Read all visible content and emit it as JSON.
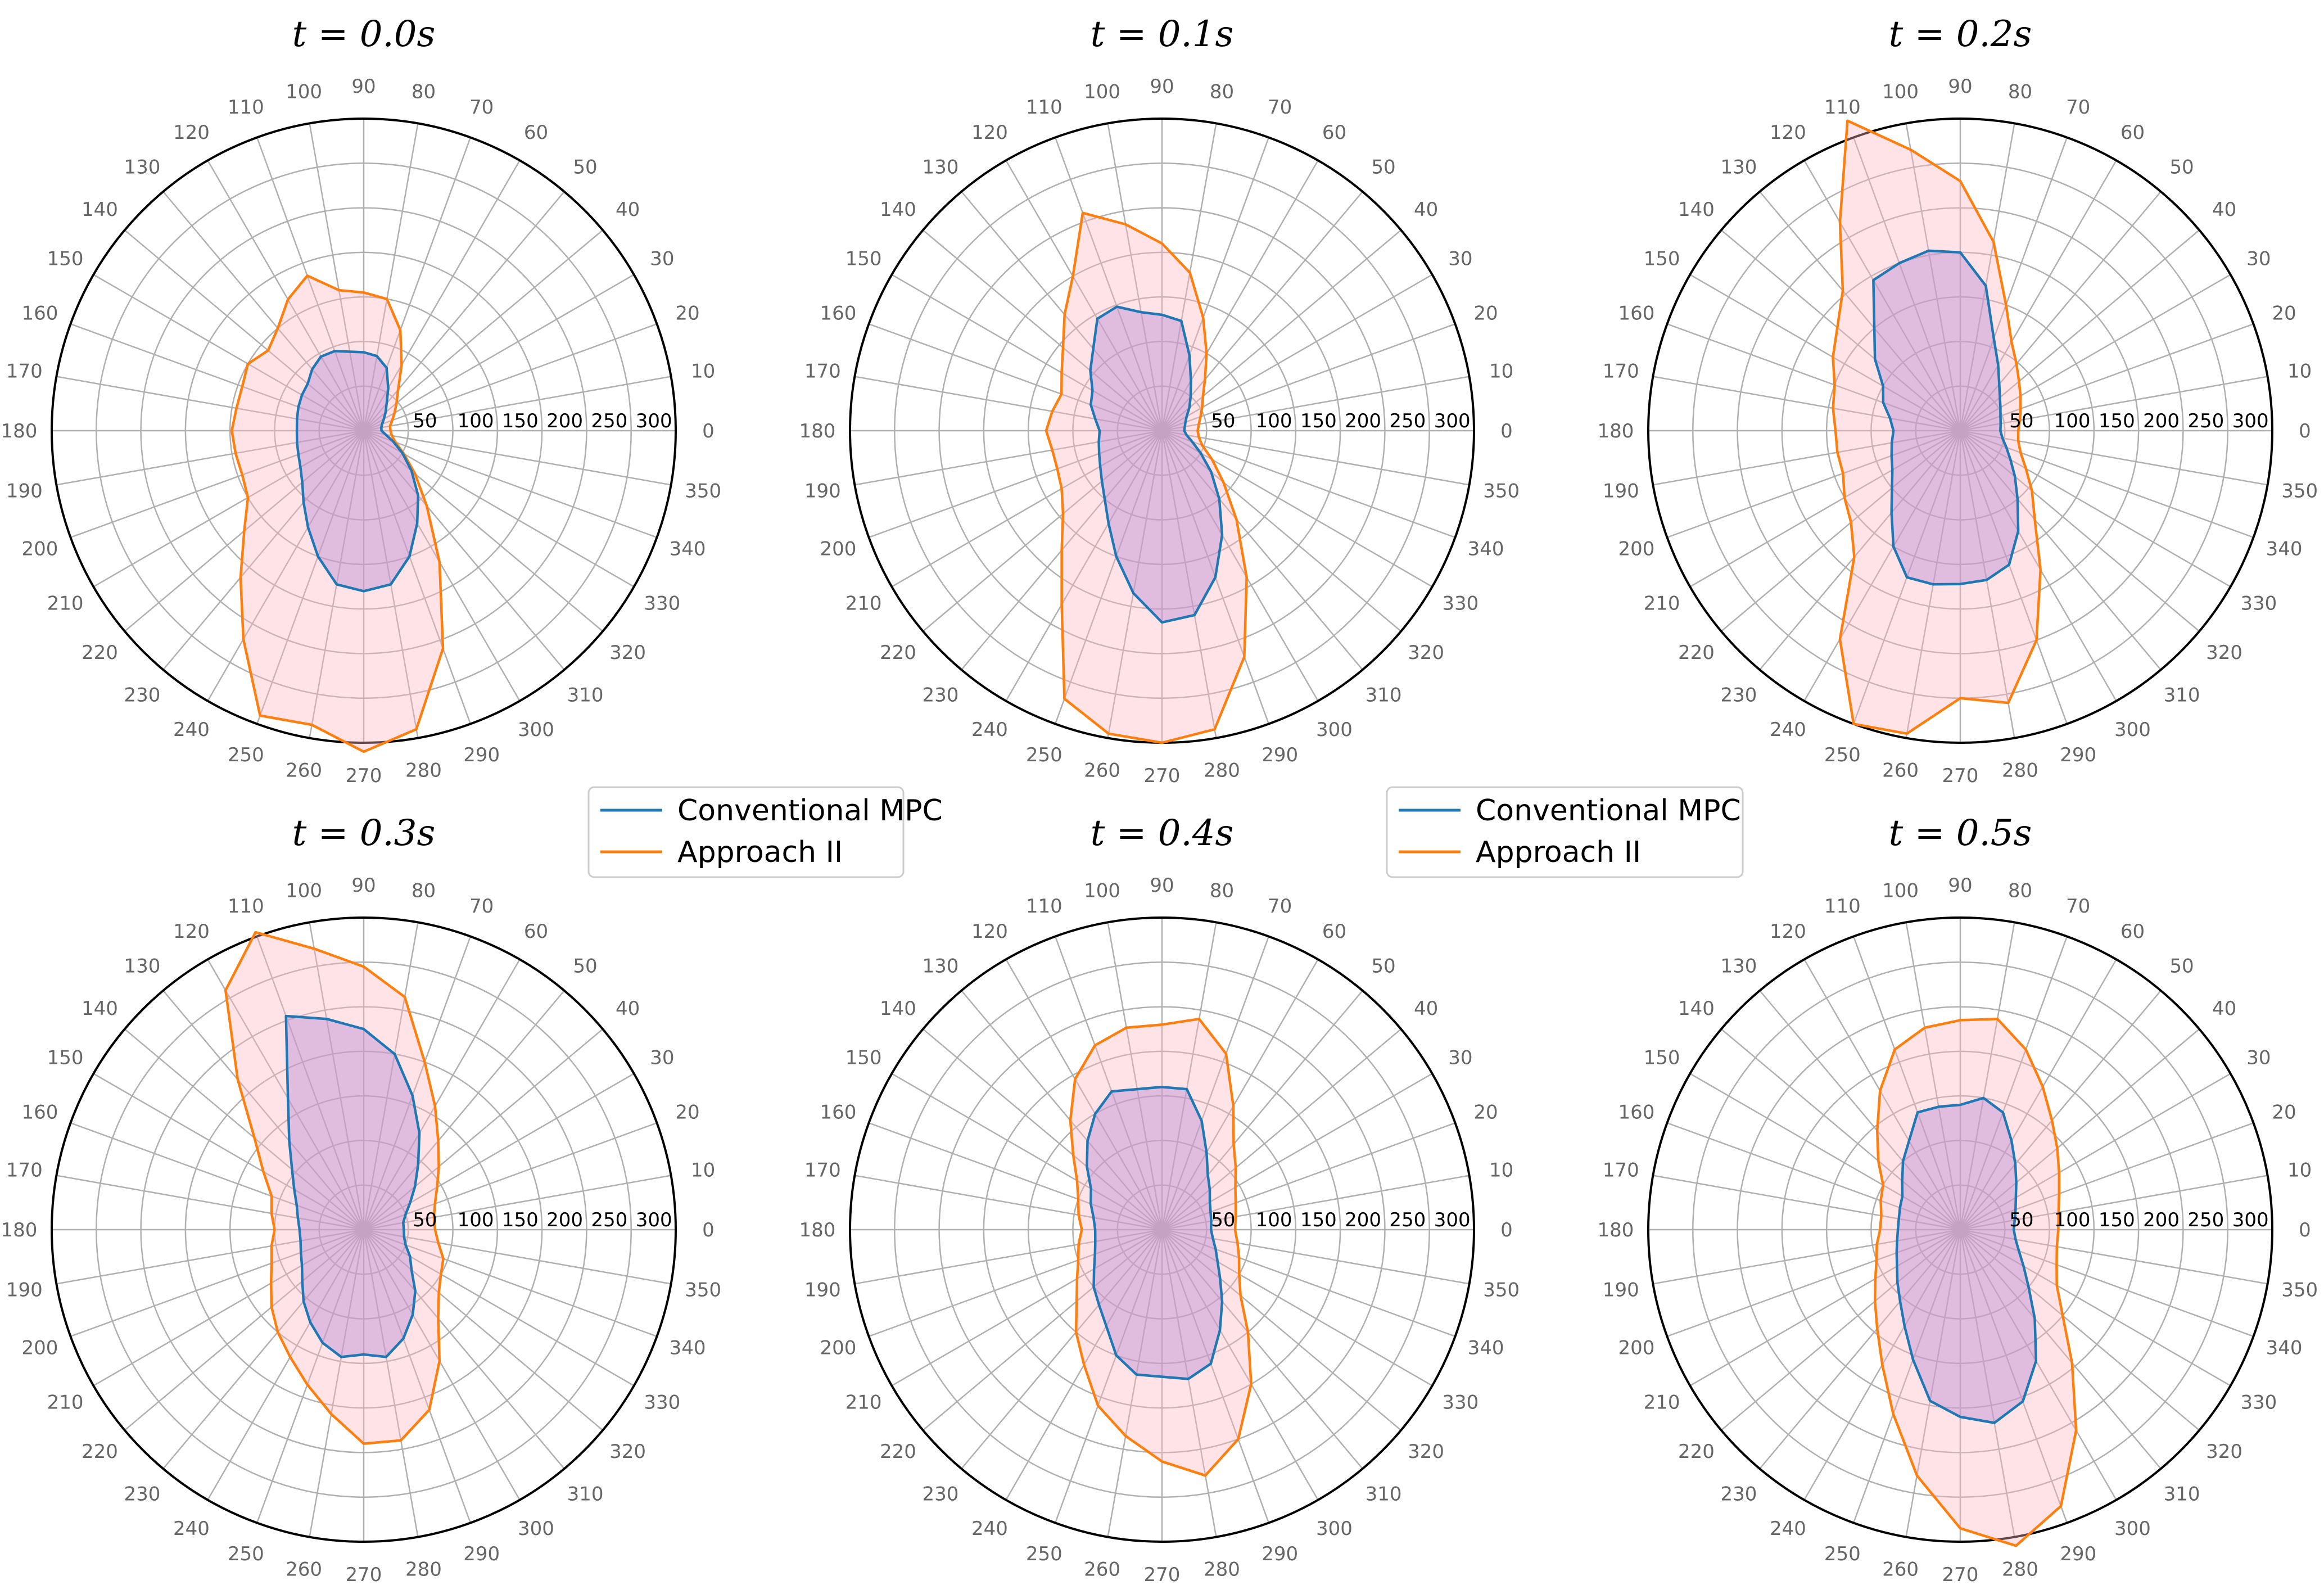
{
  "chart_data": {
    "type": "polar",
    "grid": true,
    "r_max": 350,
    "radial_ticks": [
      "50",
      "100",
      "150",
      "200",
      "250",
      "300"
    ],
    "radial_tick_values": [
      50,
      100,
      150,
      200,
      250,
      300
    ],
    "angle_ticks": [
      0,
      10,
      20,
      30,
      40,
      50,
      60,
      70,
      80,
      90,
      100,
      110,
      120,
      130,
      140,
      150,
      160,
      170,
      180,
      190,
      200,
      210,
      220,
      230,
      240,
      250,
      260,
      270,
      280,
      290,
      300,
      310,
      320,
      330,
      340,
      350
    ],
    "angle_tick_labels": [
      "0",
      "10",
      "20",
      "30",
      "40",
      "50",
      "60",
      "70",
      "80",
      "90",
      "100",
      "110",
      "120",
      "130",
      "140",
      "150",
      "160",
      "170",
      "180",
      "190",
      "200",
      "210",
      "220",
      "230",
      "240",
      "250",
      "260",
      "270",
      "280",
      "290",
      "300",
      "310",
      "320",
      "330",
      "340",
      "350"
    ],
    "series_colors": [
      "#1f77b4",
      "#ff7f0e"
    ],
    "legends": [
      {
        "entries": [
          "Conventional MPC",
          "Approach II"
        ]
      },
      {
        "entries": [
          "Conventional MPC",
          "Approach II"
        ]
      }
    ],
    "charts": [
      {
        "title": "t = 0.0s",
        "angles": [
          0,
          10,
          20,
          30,
          40,
          50,
          60,
          70,
          80,
          90,
          100,
          110,
          120,
          130,
          140,
          150,
          160,
          170,
          180,
          190,
          200,
          210,
          220,
          230,
          240,
          250,
          260,
          270,
          280,
          290,
          300,
          310,
          320,
          330,
          340,
          350
        ],
        "series": [
          {
            "name": "Conventional MPC",
            "values": [
              20,
              20,
              22,
              26,
              32,
              40,
              55,
              75,
              85,
              88,
              90,
              95,
              96,
              90,
              82,
              80,
              78,
              76,
              75,
              76,
              78,
              82,
              90,
              105,
              125,
              150,
              175,
              180,
              175,
              150,
              120,
              95,
              70,
              50,
              35,
              25
            ]
          },
          {
            "name": "Approach II",
            "values": [
              30,
              30,
              34,
              40,
              48,
              60,
              85,
              120,
              150,
              155,
              160,
              185,
              170,
              150,
              140,
              150,
              145,
              145,
              148,
              146,
              145,
              150,
              175,
              215,
              270,
              340,
              335,
              360,
              340,
              260,
              170,
              110,
              75,
              52,
              38,
              32
            ]
          }
        ]
      },
      {
        "title": "t = 0.1s",
        "angles": [
          0,
          10,
          20,
          30,
          40,
          50,
          60,
          70,
          80,
          90,
          100,
          110,
          120,
          130,
          140,
          150,
          160,
          170,
          180,
          190,
          200,
          210,
          220,
          230,
          240,
          250,
          260,
          270,
          280,
          290,
          300,
          310,
          320,
          330,
          340,
          350
        ],
        "series": [
          {
            "name": "Conventional MPC",
            "values": [
              25,
              26,
              28,
              32,
              40,
              50,
              65,
              90,
              125,
              130,
              135,
              148,
              145,
              120,
              105,
              90,
              85,
              76,
              70,
              72,
              75,
              80,
              88,
              100,
              120,
              150,
              185,
              215,
              210,
              175,
              135,
              100,
              72,
              50,
              36,
              28
            ]
          },
          {
            "name": "Approach II",
            "values": [
              40,
              42,
              46,
              52,
              60,
              75,
              100,
              135,
              180,
              210,
              235,
              260,
              200,
              170,
              145,
              130,
              120,
              125,
              130,
              125,
              125,
              130,
              145,
              175,
              225,
              320,
              345,
              350,
              340,
              270,
              190,
              130,
              90,
              65,
              48,
              42
            ]
          }
        ]
      },
      {
        "title": "t = 0.2s",
        "angles": [
          0,
          10,
          20,
          30,
          40,
          50,
          60,
          70,
          80,
          90,
          100,
          110,
          120,
          130,
          140,
          150,
          160,
          170,
          180,
          190,
          200,
          210,
          220,
          230,
          240,
          250,
          260,
          270,
          280,
          290,
          300,
          310,
          320,
          330,
          340,
          350
        ],
        "series": [
          {
            "name": "Conventional MPC",
            "values": [
              45,
              46,
              48,
              52,
              58,
              68,
              85,
              110,
              165,
              200,
              205,
              200,
              195,
              150,
              125,
              100,
              92,
              80,
              75,
              78,
              82,
              88,
              100,
              120,
              150,
              175,
              175,
              172,
              170,
              160,
              130,
              100,
              80,
              65,
              55,
              48
            ]
          },
          {
            "name": "Approach II",
            "values": [
              65,
              68,
              72,
              78,
              86,
              98,
              115,
              150,
              215,
              280,
              320,
              370,
              270,
              205,
              180,
              165,
              150,
              145,
              140,
              140,
              140,
              150,
              160,
              185,
              270,
              350,
              345,
              300,
              310,
              250,
              180,
              130,
              105,
              85,
              72,
              66
            ]
          }
        ]
      },
      {
        "title": "t = 0.3s",
        "angles": [
          0,
          10,
          20,
          30,
          40,
          50,
          60,
          70,
          80,
          90,
          100,
          110,
          120,
          130,
          140,
          150,
          160,
          170,
          180,
          190,
          200,
          210,
          220,
          230,
          240,
          250,
          260,
          270,
          280,
          290,
          300,
          310,
          320,
          330,
          340,
          350
        ],
        "series": [
          {
            "name": "Conventional MPC",
            "values": [
              45,
              45,
              50,
              60,
              75,
              95,
              125,
              160,
              200,
              225,
              240,
              255,
              170,
              130,
              105,
              90,
              80,
              75,
              72,
              72,
              75,
              80,
              90,
              105,
              120,
              135,
              145,
              140,
              145,
              130,
              110,
              90,
              70,
              60,
              50,
              46
            ]
          },
          {
            "name": "Approach II",
            "values": [
              80,
              80,
              85,
              95,
              110,
              130,
              160,
              200,
              265,
              295,
              320,
              355,
              310,
              220,
              160,
              130,
              110,
              105,
              100,
              105,
              110,
              120,
              135,
              150,
              165,
              185,
              210,
              240,
              240,
              215,
              170,
              130,
              110,
              100,
              95,
              85
            ]
          }
        ]
      },
      {
        "title": "t = 0.4s",
        "angles": [
          0,
          10,
          20,
          30,
          40,
          50,
          60,
          70,
          80,
          90,
          100,
          110,
          120,
          130,
          140,
          150,
          160,
          170,
          180,
          190,
          200,
          210,
          220,
          230,
          240,
          250,
          260,
          270,
          280,
          290,
          300,
          310,
          320,
          330,
          340,
          350
        ],
        "series": [
          {
            "name": "Conventional MPC",
            "values": [
              55,
              56,
              58,
              62,
              70,
              80,
              100,
              130,
              160,
              160,
              160,
              165,
              150,
              130,
              110,
              92,
              85,
              78,
              75,
              76,
              80,
              88,
              100,
              110,
              125,
              150,
              165,
              165,
              170,
              160,
              130,
              105,
              85,
              72,
              64,
              58
            ]
          },
          {
            "name": "Approach II",
            "values": [
              82,
              84,
              88,
              95,
              108,
              125,
              160,
              210,
              240,
              230,
              230,
              220,
              195,
              160,
              130,
              110,
              100,
              95,
              90,
              95,
              100,
              110,
              125,
              150,
              175,
              210,
              235,
              260,
              280,
              250,
              200,
              150,
              115,
              100,
              92,
              86
            ]
          }
        ]
      },
      {
        "title": "t = 0.5s",
        "angles": [
          0,
          10,
          20,
          30,
          40,
          50,
          60,
          70,
          80,
          90,
          100,
          110,
          120,
          130,
          140,
          150,
          160,
          170,
          180,
          190,
          200,
          210,
          220,
          230,
          240,
          250,
          260,
          270,
          280,
          290,
          300,
          310,
          320,
          330,
          340,
          350
        ],
        "series": [
          {
            "name": "Conventional MPC",
            "values": [
              60,
              62,
              66,
              72,
              82,
              96,
              115,
              140,
              150,
              140,
              140,
              140,
              115,
              100,
              85,
              75,
              72,
              70,
              70,
              72,
              76,
              82,
              92,
              105,
              125,
              155,
              195,
              210,
              220,
              205,
              170,
              130,
              100,
              82,
              70,
              63
            ]
          },
          {
            "name": "Approach II",
            "values": [
              110,
              112,
              118,
              128,
              142,
              160,
              185,
              215,
              240,
              235,
              230,
              215,
              180,
              145,
              120,
              100,
              95,
              90,
              90,
              95,
              100,
              110,
              125,
              145,
              175,
              220,
              280,
              335,
              360,
              330,
              260,
              195,
              150,
              125,
              115,
              110
            ]
          }
        ]
      }
    ]
  }
}
